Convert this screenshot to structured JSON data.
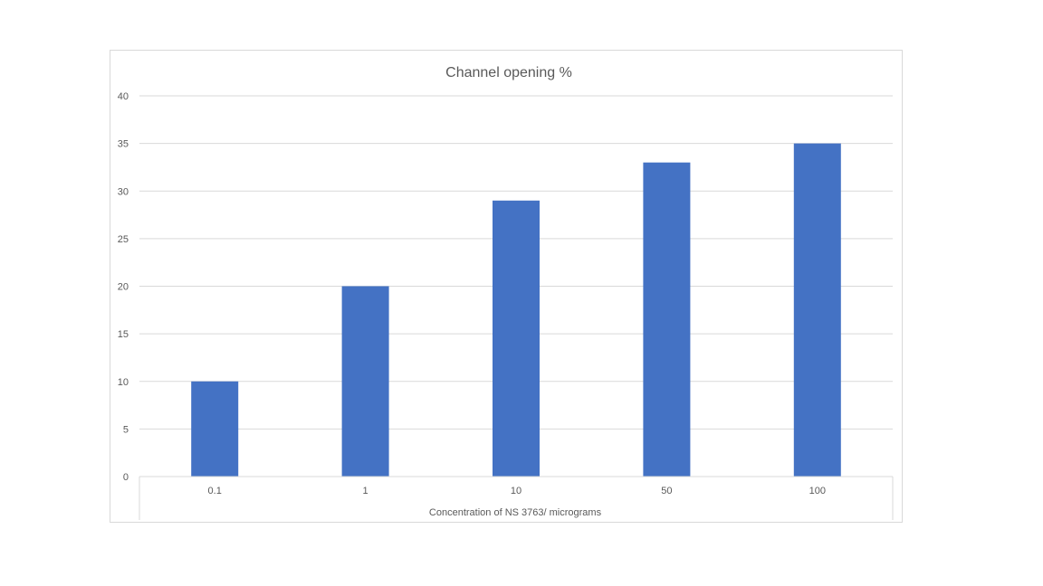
{
  "chart_data": {
    "type": "bar",
    "title": "Channel opening %",
    "xlabel": "Concentration of NS 3763/ micrograms",
    "ylabel": "",
    "categories": [
      "0.1",
      "1",
      "10",
      "50",
      "100"
    ],
    "values": [
      10,
      20,
      29,
      33,
      35
    ],
    "ylim": [
      0,
      40
    ],
    "yticks": [
      "0",
      "5",
      "10",
      "15",
      "20",
      "25",
      "30",
      "35",
      "40"
    ],
    "bar_color": "#4472c4",
    "gridline_color": "#d9d9d9",
    "grid": true,
    "legend": "none"
  }
}
